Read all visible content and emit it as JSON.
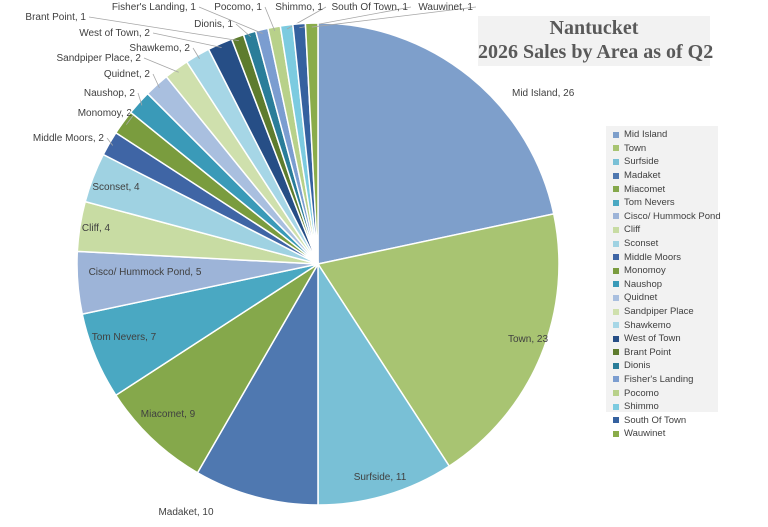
{
  "chart_data": {
    "type": "pie",
    "title": "Nantucket",
    "subtitle": "2026 Sales by Area as of Q2",
    "legend_position": "right",
    "slices": [
      {
        "label": "Mid Island",
        "value": 26,
        "color": "#7e9fcb"
      },
      {
        "label": "Town",
        "value": 23,
        "color": "#a8c472"
      },
      {
        "label": "Surfside",
        "value": 11,
        "color": "#79c0d6"
      },
      {
        "label": "Madaket",
        "value": 10,
        "color": "#4f78b0"
      },
      {
        "label": "Miacomet",
        "value": 9,
        "color": "#85a84b"
      },
      {
        "label": "Tom Nevers",
        "value": 7,
        "color": "#4aa8c2"
      },
      {
        "label": "Cisco/ Hummock Pond",
        "value": 5,
        "color": "#9db4d8"
      },
      {
        "label": "Cliff",
        "value": 4,
        "color": "#c8dca3"
      },
      {
        "label": "Sconset",
        "value": 4,
        "color": "#9fd2e2"
      },
      {
        "label": "Middle Moors",
        "value": 2,
        "color": "#3f65a5"
      },
      {
        "label": "Monomoy",
        "value": 2,
        "color": "#7a9c3e"
      },
      {
        "label": "Naushop",
        "value": 2,
        "color": "#3a9ab8"
      },
      {
        "label": "Quidnet",
        "value": 2,
        "color": "#a9bfdf"
      },
      {
        "label": "Sandpiper Place",
        "value": 2,
        "color": "#cfe0ad"
      },
      {
        "label": "Shawkemo",
        "value": 2,
        "color": "#a6d6e6"
      },
      {
        "label": "West of Town",
        "value": 2,
        "color": "#264e86"
      },
      {
        "label": "Brant Point",
        "value": 1,
        "color": "#5e7c2e"
      },
      {
        "label": "Dionis",
        "value": 1,
        "color": "#2a7d99"
      },
      {
        "label": "Fisher's Landing",
        "value": 1,
        "color": "#7b9dd0"
      },
      {
        "label": "Pocomo",
        "value": 1,
        "color": "#b8d18a"
      },
      {
        "label": "Shimmo",
        "value": 1,
        "color": "#7ccbe0"
      },
      {
        "label": "South Of Town",
        "value": 1,
        "color": "#35619f"
      },
      {
        "label": "Wauwinet",
        "value": 1,
        "color": "#8aac4a"
      }
    ]
  }
}
